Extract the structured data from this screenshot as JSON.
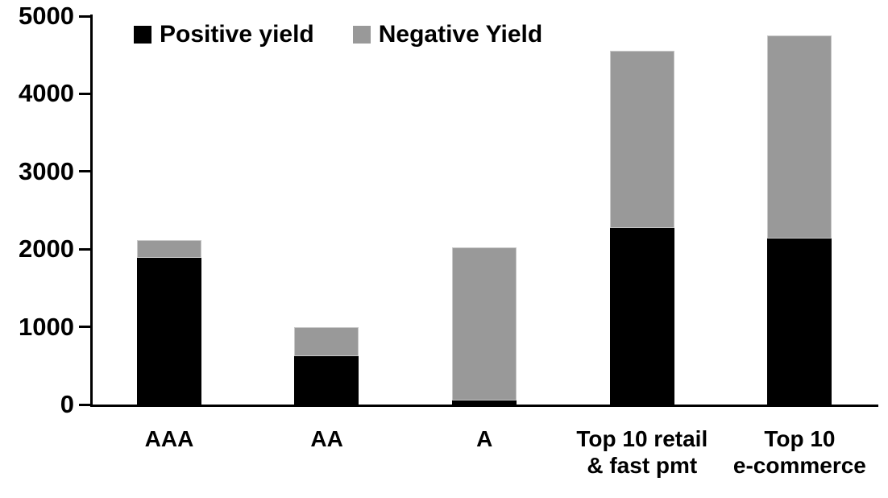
{
  "chart_data": {
    "type": "bar",
    "stacked": true,
    "title": "",
    "categories": [
      "AAA",
      "AA",
      "A",
      "Top 10 retail\n& fast pmt",
      "Top 10\ne-commerce"
    ],
    "series": [
      {
        "name": "Positive yield",
        "color": "#000000",
        "values": [
          1890,
          620,
          50,
          2270,
          2140
        ]
      },
      {
        "name": "Negative Yield",
        "color": "#999999",
        "values": [
          230,
          380,
          1970,
          2280,
          2610
        ]
      }
    ],
    "totals": [
      2120,
      1000,
      2020,
      4550,
      4750
    ],
    "y_axis": {
      "min": 0,
      "max": 5000,
      "step": 1000,
      "tick_labels": [
        "0",
        "1000",
        "2000",
        "3000",
        "4000",
        "5000"
      ]
    },
    "x_axis_label": "",
    "y_axis_label": "",
    "legend_position": "top-left-inside",
    "grid": false,
    "colors": {
      "axis": "#000000",
      "background": "#ffffff",
      "positive_yield": "#000000",
      "negative_yield": "#999999",
      "gray_segment_border": "#c8c8c8"
    }
  }
}
